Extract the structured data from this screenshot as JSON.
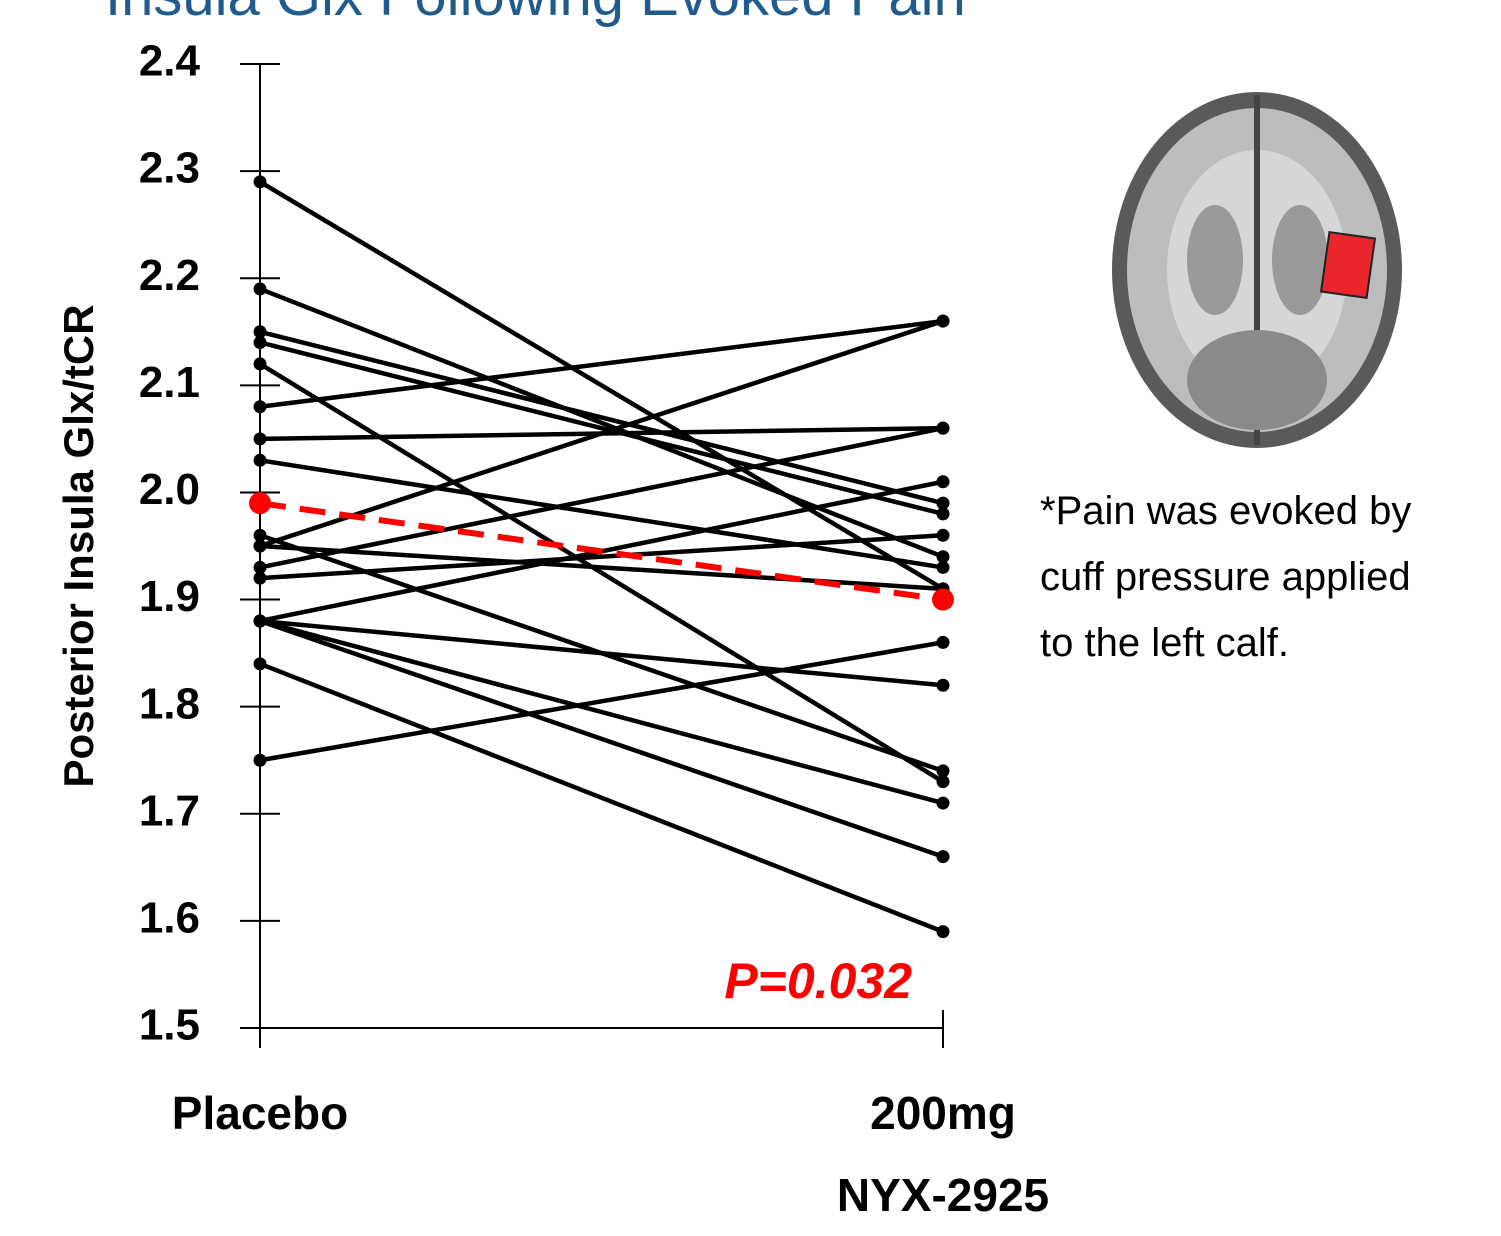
{
  "chart_data": {
    "type": "line",
    "title": "Insula Glx Following Evoked Pain",
    "ylabel": "Posterior Insula Glx/tCR",
    "categories": [
      "Placebo",
      "200mg\nNYX-2925"
    ],
    "ylim": [
      1.5,
      2.4
    ],
    "yticks": [
      1.5,
      1.6,
      1.7,
      1.8,
      1.9,
      {
        "value": 2,
        "label": "2.0"
      },
      2.1,
      2.2,
      2.3,
      2.4
    ],
    "series": [
      {
        "color": "#000000",
        "values": [
          2.29,
          1.91
        ]
      },
      {
        "color": "#000000",
        "values": [
          2.19,
          1.94
        ]
      },
      {
        "color": "#000000",
        "values": [
          2.15,
          1.99
        ]
      },
      {
        "color": "#000000",
        "values": [
          2.14,
          1.98
        ]
      },
      {
        "color": "#000000",
        "values": [
          2.12,
          1.73
        ]
      },
      {
        "color": "#000000",
        "values": [
          2.08,
          2.16
        ]
      },
      {
        "color": "#000000",
        "values": [
          2.05,
          2.06
        ]
      },
      {
        "color": "#000000",
        "values": [
          2.03,
          1.93
        ]
      },
      {
        "color": "#000000",
        "values": [
          1.96,
          1.74
        ]
      },
      {
        "color": "#000000",
        "values": [
          1.95,
          2.16
        ]
      },
      {
        "color": "#000000",
        "values": [
          1.93,
          2.06
        ]
      },
      {
        "color": "#000000",
        "values": [
          1.92,
          1.96
        ]
      },
      {
        "color": "#000000",
        "values": [
          1.95,
          1.91
        ]
      },
      {
        "color": "#000000",
        "values": [
          1.88,
          2.01
        ]
      },
      {
        "color": "#000000",
        "values": [
          1.88,
          1.82
        ]
      },
      {
        "color": "#000000",
        "values": [
          1.88,
          1.71
        ]
      },
      {
        "color": "#000000",
        "values": [
          1.88,
          1.66
        ]
      },
      {
        "color": "#000000",
        "values": [
          1.84,
          1.59
        ]
      },
      {
        "color": "#000000",
        "values": [
          1.75,
          1.86
        ]
      },
      {
        "color": "#ff0000",
        "values": [
          1.99,
          1.9
        ],
        "dashed": true
      }
    ],
    "annotation": "P=0.032",
    "annotation_color": "#ff0000",
    "note": [
      "*Pain was evoked by",
      "cuff pressure applied",
      "to the left calf."
    ]
  }
}
